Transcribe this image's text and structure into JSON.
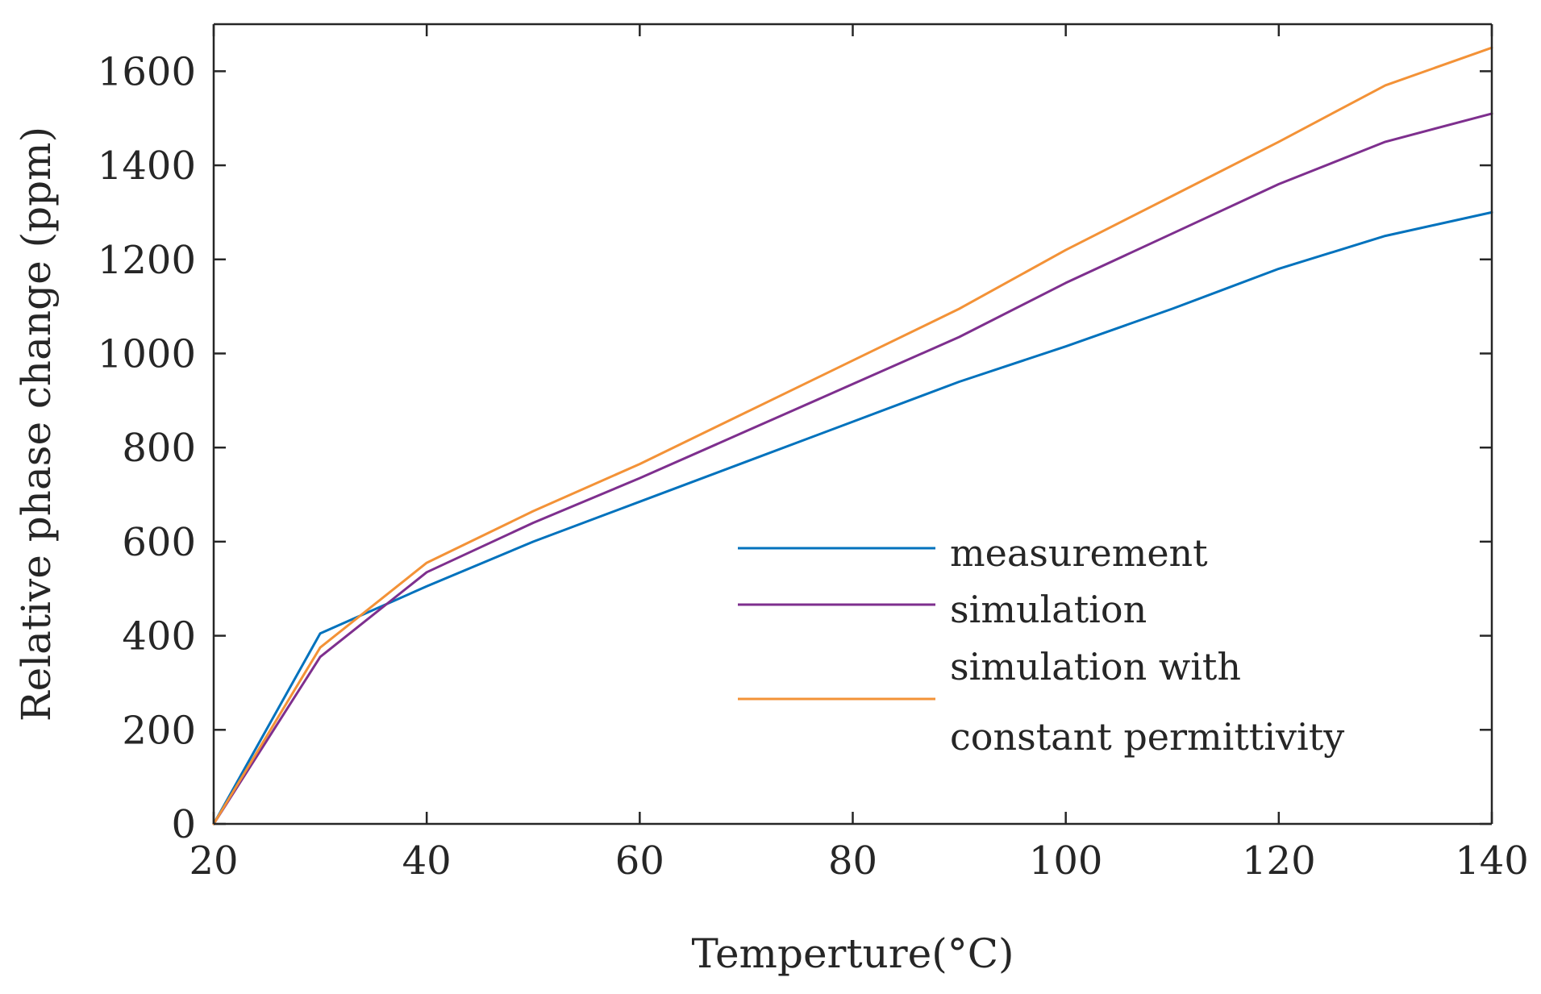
{
  "chart_data": {
    "type": "line",
    "title": "",
    "xlabel": "Temperture(°C)",
    "ylabel": "Relative phase change (ppm)",
    "xlim": [
      20,
      140
    ],
    "ylim": [
      0,
      1700
    ],
    "xticks": [
      20,
      40,
      60,
      80,
      100,
      120,
      140
    ],
    "yticks": [
      0,
      200,
      400,
      600,
      800,
      1000,
      1200,
      1400,
      1600
    ],
    "xtick_labels": [
      "20",
      "40",
      "60",
      "80",
      "100",
      "120",
      "140"
    ],
    "ytick_labels": [
      "0",
      "200",
      "400",
      "600",
      "800",
      "1000",
      "1200",
      "1400",
      "1600"
    ],
    "grid": false,
    "legend_location": "lower-right",
    "x": [
      20,
      30,
      40,
      50,
      60,
      70,
      80,
      90,
      100,
      110,
      120,
      130,
      140
    ],
    "series": [
      {
        "name": "measurement",
        "legend_lines": [
          "measurement"
        ],
        "color": "#0072BD",
        "values": [
          0,
          405,
          505,
          600,
          685,
          770,
          855,
          940,
          1015,
          1095,
          1180,
          1250,
          1300
        ]
      },
      {
        "name": "simulation",
        "legend_lines": [
          "simulation"
        ],
        "color": "#7E2F8E",
        "values": [
          0,
          355,
          535,
          640,
          735,
          835,
          935,
          1035,
          1150,
          1255,
          1360,
          1450,
          1510
        ]
      },
      {
        "name": "simulation with constant permittivity",
        "legend_lines": [
          "simulation with",
          "constant permittivity"
        ],
        "color": "#EDB120",
        "display_color": "#F39237",
        "values": [
          0,
          375,
          555,
          665,
          765,
          875,
          985,
          1095,
          1220,
          1335,
          1450,
          1570,
          1650
        ]
      }
    ]
  }
}
